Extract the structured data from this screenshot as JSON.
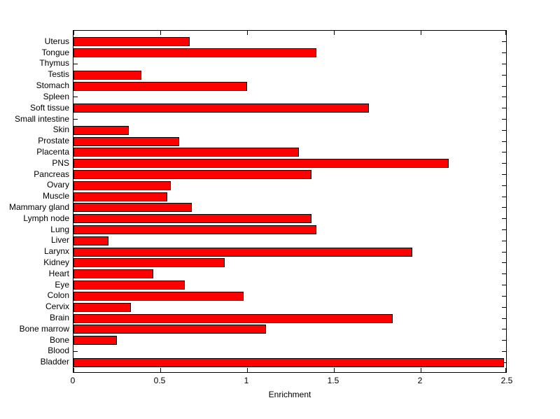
{
  "figure": {
    "background": "#ffffff",
    "axis_color": "#000000"
  },
  "chart_data": {
    "type": "bar",
    "orientation": "horizontal",
    "title": "",
    "xlabel": "Enrichment",
    "ylabel": "",
    "xlim": [
      0,
      2.5
    ],
    "xticks": [
      0,
      0.5,
      1,
      1.5,
      2,
      2.5
    ],
    "xtick_labels": [
      "0",
      "0.5",
      "1",
      "1.5",
      "2",
      "2.5"
    ],
    "grid": false,
    "legend": null,
    "bar_color": "#ff0000",
    "bar_edge_color": "#000000",
    "categories_top_to_bottom": [
      "Uterus",
      "Tongue",
      "Thymus",
      "Testis",
      "Stomach",
      "Spleen",
      "Soft tissue",
      "Small intestine",
      "Skin",
      "Prostate",
      "Placenta",
      "PNS",
      "Pancreas",
      "Ovary",
      "Muscle",
      "Mammary gland",
      "Lymph node",
      "Lung",
      "Liver",
      "Larynx",
      "Kidney",
      "Heart",
      "Eye",
      "Colon",
      "Cervix",
      "Brain",
      "Bone marrow",
      "Bone",
      "Blood",
      "Bladder"
    ],
    "values": [
      0.67,
      1.4,
      0,
      0.39,
      1.0,
      0,
      1.7,
      0,
      0.32,
      0.61,
      1.3,
      2.16,
      1.37,
      0.56,
      0.54,
      0.68,
      1.37,
      1.4,
      0.2,
      1.95,
      0.87,
      0.46,
      0.64,
      0.98,
      0.33,
      1.84,
      1.11,
      0.25,
      0,
      2.48
    ]
  }
}
